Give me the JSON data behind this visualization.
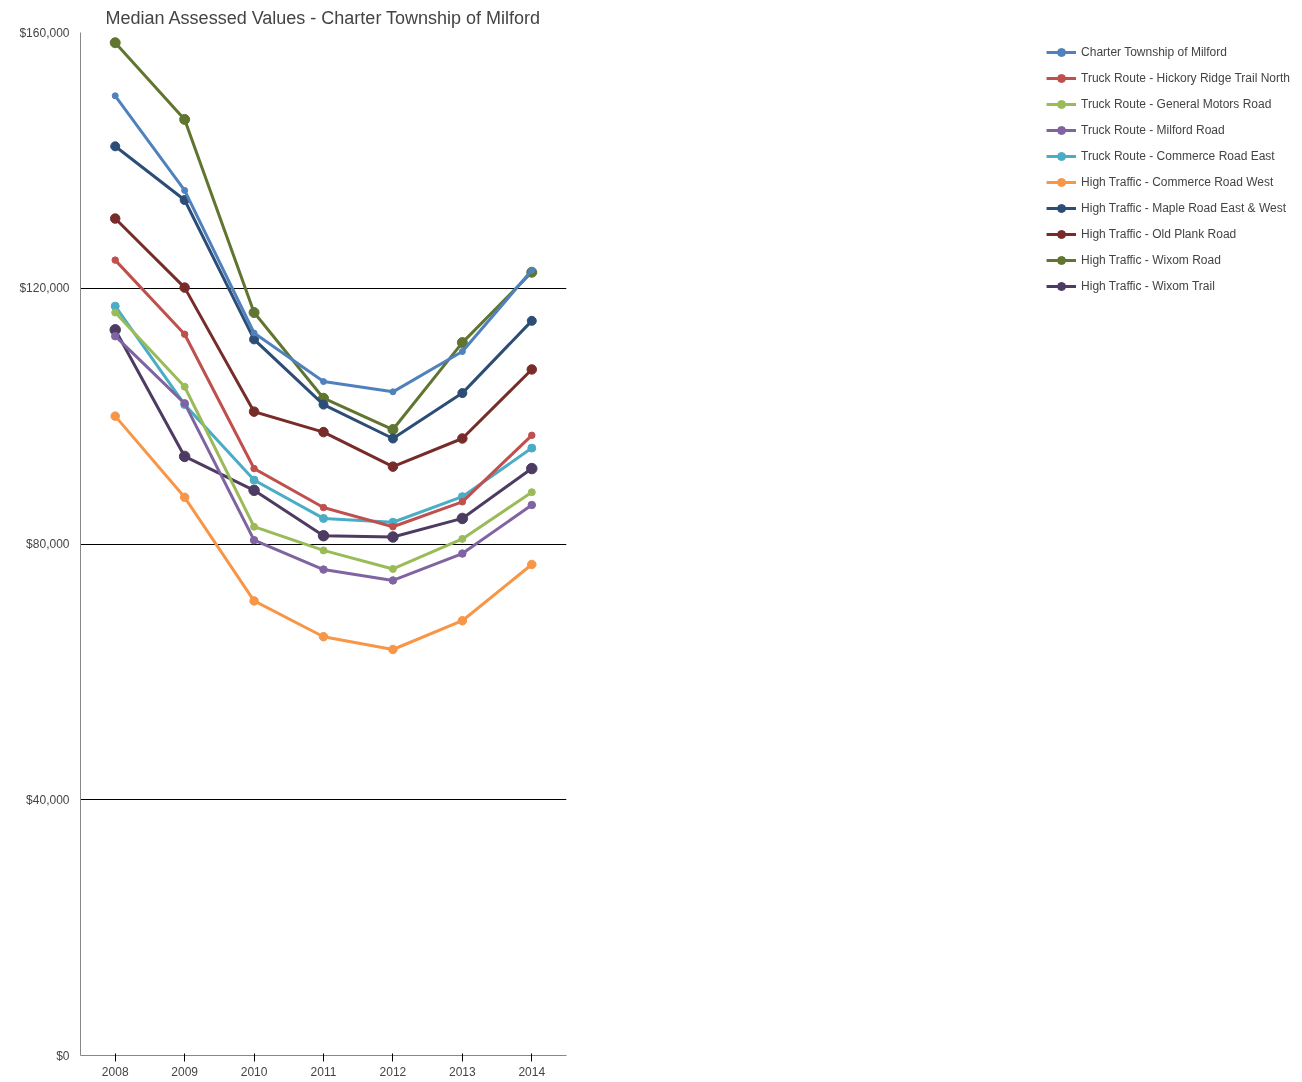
{
  "chart_data": {
    "type": "line",
    "title": "Median Assessed Values - Charter Township of Milford",
    "categories": [
      "2008",
      "2009",
      "2010",
      "2011",
      "2012",
      "2013",
      "2014"
    ],
    "ylim": [
      0,
      160000
    ],
    "yticks": [
      {
        "value": 0,
        "label": "$0"
      },
      {
        "value": 40000,
        "label": "$40,000"
      },
      {
        "value": 80000,
        "label": "$80,000"
      },
      {
        "value": 120000,
        "label": "$120,000"
      },
      {
        "value": 160000,
        "label": "$160,000"
      }
    ],
    "grid": "y",
    "legend": "right",
    "marker": "circle",
    "line_style": "solid",
    "series": [
      {
        "name": "Charter Township of Milford",
        "color": "#4f81bd",
        "values": [
          150100,
          135300,
          113000,
          105400,
          103800,
          110100,
          122800
        ]
      },
      {
        "name": "Truck Route - Hickory Ridge Trail North",
        "color": "#c0504d",
        "values": [
          124400,
          112800,
          91800,
          85700,
          82700,
          86600,
          97000
        ]
      },
      {
        "name": "Truck Route - General Motors Road",
        "color": "#9bbb59",
        "values": [
          116200,
          104600,
          82700,
          79000,
          76100,
          80800,
          88100
        ]
      },
      {
        "name": "Truck Route - Milford Road",
        "color": "#8064a2",
        "values": [
          112500,
          102000,
          80600,
          76000,
          74300,
          78500,
          86100
        ]
      },
      {
        "name": "Truck Route - Commerce Road East",
        "color": "#4bacc6",
        "values": [
          117200,
          101800,
          90000,
          84000,
          83400,
          87400,
          95000
        ]
      },
      {
        "name": "High Traffic - Commerce Road West",
        "color": "#f79646",
        "values": [
          100000,
          87300,
          71100,
          65500,
          63500,
          68000,
          76800
        ]
      },
      {
        "name": "High Traffic - Maple Road East & West",
        "color": "#2c4d75",
        "values": [
          142200,
          133800,
          112000,
          101800,
          96500,
          103600,
          114900
        ]
      },
      {
        "name": "High Traffic - Old Plank Road",
        "color": "#772c2a",
        "values": [
          130900,
          120100,
          100700,
          97500,
          92100,
          96500,
          107300
        ]
      },
      {
        "name": "High Traffic - Wixom Road",
        "color": "#5f7530",
        "values": [
          158400,
          146400,
          116200,
          102800,
          97900,
          111500,
          122500
        ]
      },
      {
        "name": "High Traffic - Wixom Trail",
        "color": "#4d3b62",
        "values": [
          113500,
          93700,
          88400,
          81300,
          81100,
          84000,
          91800
        ]
      }
    ]
  }
}
